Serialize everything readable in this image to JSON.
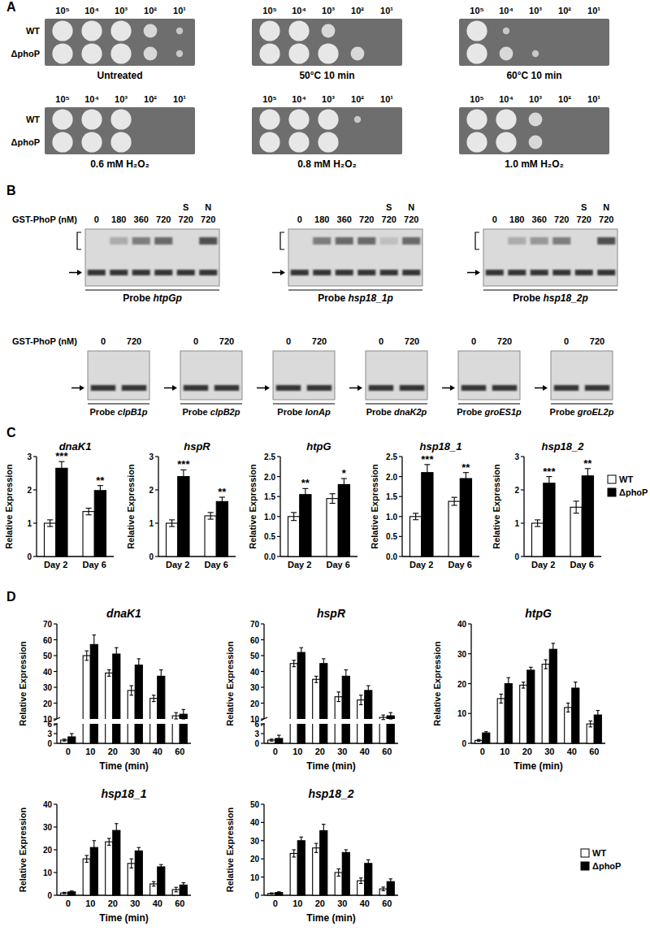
{
  "panel_labels": [
    "A",
    "B",
    "C",
    "D"
  ],
  "panel_a": {
    "dilutions": [
      "10⁵",
      "10⁴",
      "10³",
      "10²",
      "10¹"
    ],
    "strains": [
      "WT",
      "ΔphoP"
    ],
    "plates": [
      {
        "condition": "Untreated",
        "growth": [
          [
            3,
            3,
            3,
            2,
            1
          ],
          [
            3,
            3,
            3,
            2,
            1
          ]
        ]
      },
      {
        "condition": "50°C 10 min",
        "growth": [
          [
            3,
            3,
            2,
            0,
            0
          ],
          [
            3,
            3,
            3,
            2,
            0
          ]
        ]
      },
      {
        "condition": "60°C 10 min",
        "growth": [
          [
            3,
            1,
            0,
            0,
            0
          ],
          [
            3,
            2,
            1,
            0,
            0
          ]
        ]
      },
      {
        "condition": "0.6 mM H₂O₂",
        "growth": [
          [
            3,
            3,
            3,
            0,
            0
          ],
          [
            3,
            3,
            3,
            0,
            0
          ]
        ]
      },
      {
        "condition": "0.8 mM H₂O₂",
        "growth": [
          [
            3,
            3,
            3,
            1,
            0
          ],
          [
            3,
            3,
            3,
            0,
            0
          ]
        ]
      },
      {
        "condition": "1.0 mM H₂O₂",
        "growth": [
          [
            3,
            3,
            2,
            0,
            0
          ],
          [
            3,
            3,
            2,
            0,
            0
          ]
        ]
      }
    ]
  },
  "panel_b": {
    "axis_label": "GST-PhoP (nM)",
    "gels": [
      {
        "probe": "Probe htpGp",
        "concentrations": [
          0,
          180,
          360,
          720,
          720,
          720
        ],
        "competitors": [
          null,
          null,
          null,
          null,
          "S",
          "N"
        ],
        "bound": [
          0,
          1,
          2,
          2.5,
          0,
          3
        ]
      },
      {
        "probe": "Probe hsp18_1p",
        "concentrations": [
          0,
          180,
          360,
          720,
          720,
          720
        ],
        "competitors": [
          null,
          null,
          null,
          null,
          "S",
          "N"
        ],
        "bound": [
          0,
          2,
          2.5,
          2.5,
          0.5,
          2.5
        ]
      },
      {
        "probe": "Probe hsp18_2p",
        "concentrations": [
          0,
          180,
          360,
          720,
          720,
          720
        ],
        "competitors": [
          null,
          null,
          null,
          null,
          "S",
          "N"
        ],
        "bound": [
          0,
          1,
          1.5,
          2,
          0,
          3
        ]
      },
      {
        "probe": "Probe clpB1p",
        "concentrations": [
          0,
          720
        ],
        "competitors": [
          null,
          null
        ],
        "bound": [
          0,
          0
        ]
      },
      {
        "probe": "Probe clpB2p",
        "concentrations": [
          0,
          720
        ],
        "competitors": [
          null,
          null
        ],
        "bound": [
          0,
          0
        ]
      },
      {
        "probe": "Probe lonAp",
        "concentrations": [
          0,
          720
        ],
        "competitors": [
          null,
          null
        ],
        "bound": [
          0,
          0
        ]
      },
      {
        "probe": "Probe dnaK2p",
        "concentrations": [
          0,
          720
        ],
        "competitors": [
          null,
          null
        ],
        "bound": [
          0,
          0
        ]
      },
      {
        "probe": "Probe groES1p",
        "concentrations": [
          0,
          720
        ],
        "competitors": [
          null,
          null
        ],
        "bound": [
          0,
          0
        ]
      },
      {
        "probe": "Probe groEL2p",
        "concentrations": [
          0,
          720
        ],
        "competitors": [
          null,
          null
        ],
        "bound": [
          0,
          0
        ]
      }
    ]
  },
  "chart_data": [
    {
      "type": "bar",
      "title": "dnaK1",
      "y_label": "Relative Expression",
      "categories": [
        "Day 2",
        "Day 6"
      ],
      "series": [
        {
          "name": "WT",
          "color": "#ffffff",
          "values": [
            1.0,
            1.35
          ],
          "errors": [
            0.1,
            0.1
          ]
        },
        {
          "name": "ΔphoP",
          "color": "#000000",
          "values": [
            2.65,
            1.98
          ],
          "errors": [
            0.2,
            0.15
          ],
          "annotations": [
            "***",
            "**"
          ]
        }
      ],
      "ylim": [
        0,
        3
      ],
      "yticks": [
        0,
        1,
        2,
        3
      ]
    },
    {
      "type": "bar",
      "title": "hspR",
      "y_label": "Relative Expression",
      "categories": [
        "Day 2",
        "Day 6"
      ],
      "series": [
        {
          "name": "WT",
          "color": "#ffffff",
          "values": [
            1.0,
            1.22
          ],
          "errors": [
            0.1,
            0.1
          ]
        },
        {
          "name": "ΔphoP",
          "color": "#000000",
          "values": [
            2.4,
            1.65
          ],
          "errors": [
            0.2,
            0.13
          ],
          "annotations": [
            "***",
            "**"
          ]
        }
      ],
      "ylim": [
        0,
        3
      ],
      "yticks": [
        0,
        1,
        2,
        3
      ]
    },
    {
      "type": "bar",
      "title": "htpG",
      "y_label": "Relative Expression",
      "categories": [
        "Day 2",
        "Day 6"
      ],
      "series": [
        {
          "name": "WT",
          "color": "#ffffff",
          "values": [
            1.0,
            1.45
          ],
          "errors": [
            0.1,
            0.12
          ]
        },
        {
          "name": "ΔphoP",
          "color": "#000000",
          "values": [
            1.55,
            1.8
          ],
          "errors": [
            0.15,
            0.15
          ],
          "annotations": [
            "**",
            "*"
          ]
        }
      ],
      "ylim": [
        0,
        2.5
      ],
      "yticks": [
        {
          "value": 0,
          "label": "0.0"
        },
        0.5,
        {
          "value": 1,
          "label": "1.0"
        },
        1.5,
        {
          "value": 2,
          "label": "2.0"
        },
        2.5
      ]
    },
    {
      "type": "bar",
      "title": "hsp18_1",
      "y_label": "Relative Expression",
      "categories": [
        "Day 2",
        "Day 6"
      ],
      "series": [
        {
          "name": "WT",
          "color": "#ffffff",
          "values": [
            1.0,
            1.38
          ],
          "errors": [
            0.08,
            0.1
          ]
        },
        {
          "name": "ΔphoP",
          "color": "#000000",
          "values": [
            2.1,
            1.95
          ],
          "errors": [
            0.2,
            0.15
          ],
          "annotations": [
            "***",
            "**"
          ]
        }
      ],
      "ylim": [
        0,
        2.5
      ],
      "yticks": [
        {
          "value": 0,
          "label": "0.0"
        },
        0.5,
        {
          "value": 1,
          "label": "1.0"
        },
        1.5,
        {
          "value": 2,
          "label": "2.0"
        },
        2.5
      ]
    },
    {
      "type": "bar",
      "title": "hsp18_2",
      "y_label": "Relative Expression",
      "categories": [
        "Day 2",
        "Day 6"
      ],
      "series": [
        {
          "name": "WT",
          "color": "#ffffff",
          "values": [
            1.0,
            1.48
          ],
          "errors": [
            0.1,
            0.18
          ]
        },
        {
          "name": "ΔphoP",
          "color": "#000000",
          "values": [
            2.2,
            2.42
          ],
          "errors": [
            0.2,
            0.22
          ],
          "annotations": [
            "***",
            "**"
          ]
        }
      ],
      "ylim": [
        0,
        3
      ],
      "yticks": [
        0,
        1,
        2,
        3
      ],
      "legend": "right"
    },
    {
      "type": "bar",
      "title": "dnaK1",
      "y_label": "Relative Expression",
      "x_label": "Time (min)",
      "categories": [
        "0",
        "10",
        "20",
        "30",
        "40",
        "60"
      ],
      "series": [
        {
          "name": "WT",
          "color": "#ffffff",
          "values": [
            1,
            50,
            39,
            28,
            23,
            12
          ],
          "errors": [
            0.3,
            3,
            2,
            3,
            2,
            2
          ]
        },
        {
          "name": "ΔphoP",
          "color": "#000000",
          "values": [
            2,
            57,
            51,
            44,
            37,
            13
          ],
          "errors": [
            1,
            6,
            4,
            4,
            4,
            3
          ]
        }
      ],
      "ylim": [
        0,
        70
      ],
      "yticks": [
        0,
        3,
        6,
        10,
        20,
        30,
        40,
        50,
        60,
        70
      ],
      "axis_break": [
        6,
        10
      ]
    },
    {
      "type": "bar",
      "title": "hspR",
      "y_label": "Relative Expression",
      "x_label": "Time (min)",
      "categories": [
        "0",
        "10",
        "20",
        "30",
        "40",
        "60"
      ],
      "series": [
        {
          "name": "WT",
          "color": "#ffffff",
          "values": [
            1,
            45,
            35,
            24,
            22,
            11
          ],
          "errors": [
            0.3,
            2,
            2,
            3,
            3,
            1.5
          ]
        },
        {
          "name": "ΔphoP",
          "color": "#000000",
          "values": [
            1.5,
            52,
            45,
            37,
            28,
            12
          ],
          "errors": [
            1,
            3,
            3,
            4,
            3,
            2
          ]
        }
      ],
      "ylim": [
        0,
        70
      ],
      "yticks": [
        0,
        3,
        6,
        10,
        20,
        30,
        40,
        50,
        60,
        70
      ],
      "axis_break": [
        6,
        10
      ]
    },
    {
      "type": "bar",
      "title": "htpG",
      "y_label": "Relative Expression",
      "x_label": "Time (min)",
      "categories": [
        "0",
        "10",
        "20",
        "30",
        "40",
        "60"
      ],
      "series": [
        {
          "name": "WT",
          "color": "#ffffff",
          "values": [
            1,
            15,
            19.5,
            26.5,
            12,
            6.5
          ],
          "errors": [
            0.3,
            1.5,
            1,
            1.5,
            1.5,
            1
          ]
        },
        {
          "name": "ΔphoP",
          "color": "#000000",
          "values": [
            3.5,
            20,
            24.5,
            31.5,
            18.5,
            9.5
          ],
          "errors": [
            0.4,
            2,
            1,
            2,
            2,
            1.5
          ]
        }
      ],
      "ylim": [
        0,
        40
      ],
      "yticks": [
        0,
        10,
        20,
        30,
        40
      ]
    },
    {
      "type": "bar",
      "title": "hsp18_1",
      "y_label": "Relative Expression",
      "x_label": "Time (min)",
      "categories": [
        "0",
        "10",
        "20",
        "30",
        "40",
        "60"
      ],
      "series": [
        {
          "name": "WT",
          "color": "#ffffff",
          "values": [
            1,
            16,
            23.5,
            14,
            5,
            2.5
          ],
          "errors": [
            0.3,
            1.5,
            1.5,
            2,
            1,
            1
          ]
        },
        {
          "name": "ΔphoP",
          "color": "#000000",
          "values": [
            1.5,
            21,
            28.5,
            19.5,
            12.5,
            4.5
          ],
          "errors": [
            0.4,
            3,
            3,
            1.5,
            1,
            1
          ]
        }
      ],
      "ylim": [
        0,
        40
      ],
      "yticks": [
        0,
        10,
        20,
        30,
        40
      ]
    },
    {
      "type": "bar",
      "title": "hsp18_2",
      "y_label": "Relative Expression",
      "x_label": "Time (min)",
      "categories": [
        "0",
        "10",
        "20",
        "30",
        "40",
        "60"
      ],
      "series": [
        {
          "name": "WT",
          "color": "#ffffff",
          "values": [
            1,
            23,
            26,
            12.5,
            8,
            3.5
          ],
          "errors": [
            0.3,
            2,
            2.5,
            2,
            1.5,
            1
          ]
        },
        {
          "name": "ΔphoP",
          "color": "#000000",
          "values": [
            1.5,
            30,
            35.5,
            23.5,
            17.5,
            7.5
          ],
          "errors": [
            0.4,
            2,
            3.5,
            1.5,
            2,
            1.5
          ]
        }
      ],
      "ylim": [
        0,
        50
      ],
      "yticks": [
        0,
        10,
        20,
        30,
        40,
        50
      ],
      "legend": "right"
    }
  ]
}
